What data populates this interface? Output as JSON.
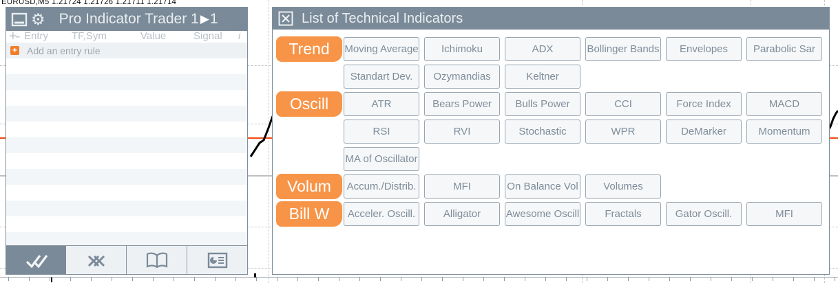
{
  "quote_bar": {
    "text": "EURUSD,M5  1.21724 1.21726 1.21711 1.21714"
  },
  "left_panel": {
    "title": "Pro Indicator Trader 1",
    "version_suffix": "1",
    "column_headers": {
      "add_remove": "+-",
      "entry": "Entry",
      "tf_sym": "TF,Sym",
      "value": "Value",
      "signal": "Signal",
      "info": "i"
    },
    "add_entry_rule_label": "Add an entry rule",
    "toolbar": {
      "items": [
        {
          "icon": "double-check-icon",
          "active": true
        },
        {
          "icon": "double-cross-icon",
          "active": false
        },
        {
          "icon": "open-book-icon",
          "active": false
        },
        {
          "icon": "report-board-icon",
          "active": false
        }
      ]
    }
  },
  "right_panel": {
    "title": "List of Technical Indicators",
    "groups": [
      {
        "label": "Trend",
        "rows": [
          [
            "Moving Average",
            "Ichimoku",
            "ADX",
            "Bollinger Bands",
            "Envelopes",
            "Parabolic Sar"
          ],
          [
            "Standart Dev.",
            "Ozymandias",
            "Keltner"
          ]
        ]
      },
      {
        "label": "Oscill",
        "rows": [
          [
            "ATR",
            "Bears Power",
            "Bulls Power",
            "CCI",
            "Force Index",
            "MACD"
          ],
          [
            "RSI",
            "RVI",
            "Stochastic",
            "WPR",
            "DeMarker",
            "Momentum"
          ],
          [
            "MA of Oscillator"
          ]
        ]
      },
      {
        "label": "Volum",
        "rows": [
          [
            "Accum./Distrib.",
            "MFI",
            "On Balance Vol",
            "Volumes"
          ]
        ]
      },
      {
        "label": "Bill W",
        "rows": [
          [
            "Acceler. Oscill.",
            "Alligator",
            "Awesome Oscill",
            "Fractals",
            "Gator Oscill.",
            "MFI"
          ]
        ]
      }
    ]
  },
  "colors": {
    "header_slate": "#7b8a98",
    "accent_orange": "#f79447",
    "plus_orange": "#ee7f2a",
    "bid_line_orange": "#f4490f",
    "button_text": "#7f8d99",
    "button_border": "#98a5af",
    "stripe_gray": "#f3f6f8"
  }
}
